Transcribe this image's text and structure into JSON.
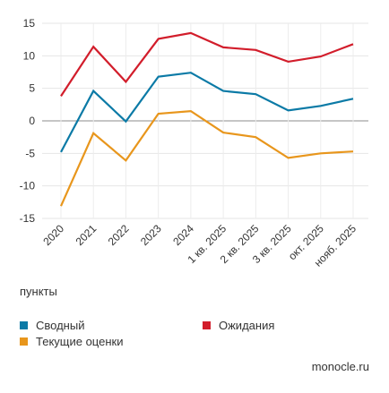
{
  "chart_data": {
    "type": "line",
    "x": [
      "2020",
      "2021",
      "2022",
      "2023",
      "2024",
      "1 кв. 2025",
      "2 кв. 2025",
      "3 кв. 2025",
      "окт. 2025",
      "нояб. 2025"
    ],
    "series": [
      {
        "name": "Сводный",
        "color": "#0b7aa6",
        "values": [
          -4.8,
          4.6,
          -0.1,
          6.8,
          7.4,
          4.6,
          4.1,
          1.6,
          2.3,
          3.4
        ]
      },
      {
        "name": "Ожидания",
        "color": "#d21d2b",
        "values": [
          3.8,
          11.4,
          6.0,
          12.6,
          13.5,
          11.3,
          10.9,
          9.1,
          9.9,
          11.8
        ]
      },
      {
        "name": "Текущие оценки",
        "color": "#e8961c",
        "values": [
          -13.1,
          -1.9,
          -6.1,
          1.1,
          1.5,
          -1.8,
          -2.5,
          -5.7,
          -5.0,
          -4.7
        ]
      }
    ],
    "yticks": [
      15,
      10,
      5,
      0,
      -5,
      -10,
      -15
    ],
    "ylim": [
      -15,
      15
    ],
    "grid": true,
    "ylabel": "пункты"
  },
  "legend": {
    "svodny": "Сводный",
    "ozhidaniya": "Ожидания",
    "tekushchie": "Текущие оценки"
  },
  "unit_label": "пункты",
  "source": "monocle.ru"
}
